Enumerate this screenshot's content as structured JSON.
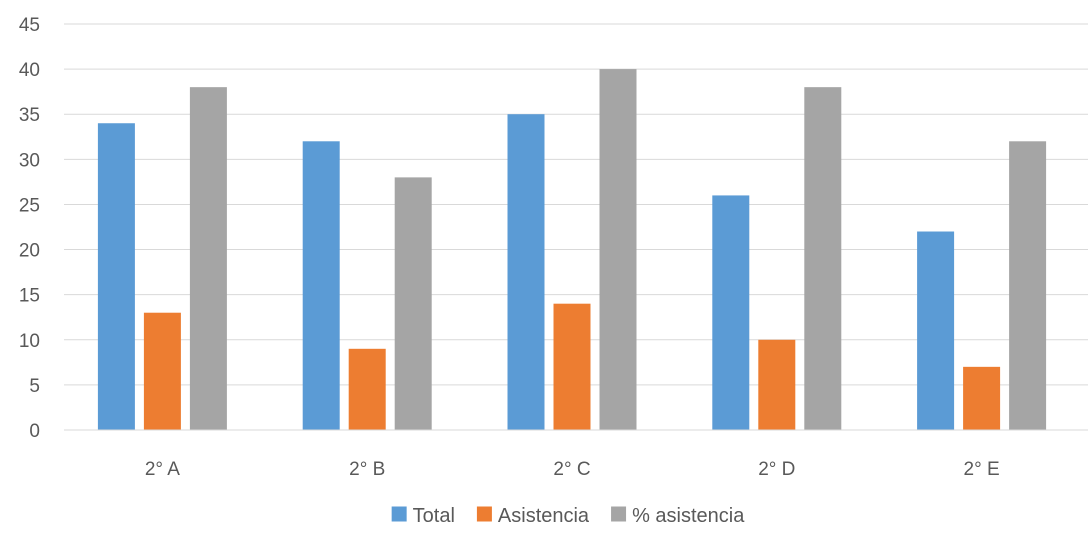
{
  "chart_data": {
    "type": "bar",
    "categories": [
      "2° A",
      "2° B",
      "2° C",
      "2° D",
      "2° E"
    ],
    "series": [
      {
        "name": "Total",
        "values": [
          34,
          32,
          35,
          26,
          22
        ],
        "color": "#5B9BD5"
      },
      {
        "name": "Asistencia",
        "values": [
          13,
          9,
          14,
          10,
          7
        ],
        "color": "#ED7D31"
      },
      {
        "name": "% asistencia",
        "values": [
          38,
          28,
          40,
          38,
          32
        ],
        "color": "#A5A5A5"
      }
    ],
    "ylim": [
      0,
      45
    ],
    "yticks": [
      0,
      5,
      10,
      15,
      20,
      25,
      30,
      35,
      40,
      45
    ],
    "grid": true,
    "gridColor": "#D9D9D9",
    "legend": "bottom"
  }
}
